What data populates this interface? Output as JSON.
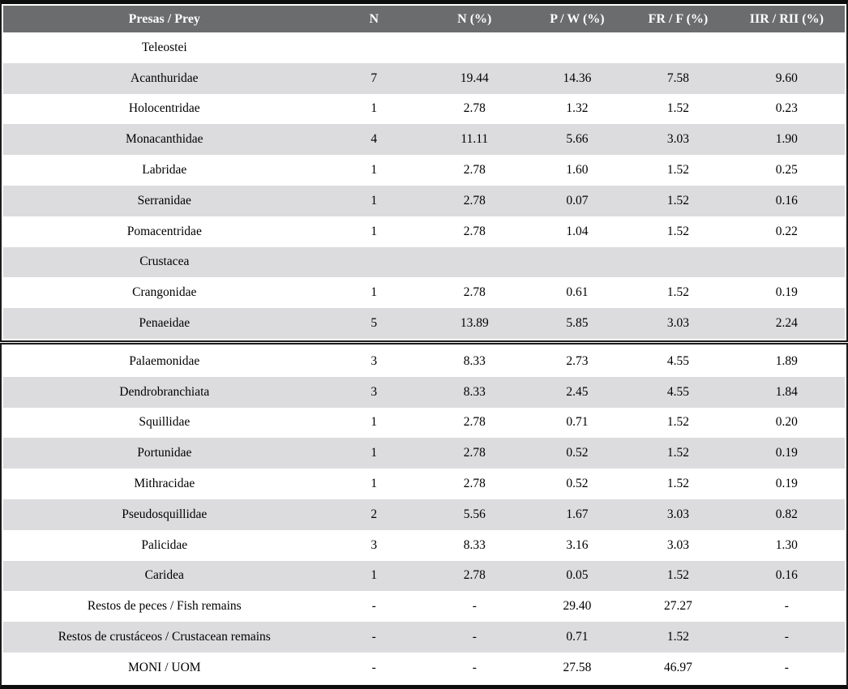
{
  "table": {
    "title": "Diet composition table (Presas / Prey)",
    "columns": [
      "Presas / Prey",
      "N",
      "N (%)",
      "P / W (%)",
      "FR / F (%)",
      "IIR / RII (%)"
    ],
    "rows": [
      {
        "label": "Teleostei",
        "section": true,
        "box": 1,
        "values": [
          "",
          "",
          "",
          "",
          ""
        ]
      },
      {
        "label": "Acanthuridae",
        "section": false,
        "box": 1,
        "values": [
          "7",
          "19.44",
          "14.36",
          "7.58",
          "9.60"
        ]
      },
      {
        "label": "Holocentridae",
        "section": false,
        "box": 1,
        "values": [
          "1",
          "2.78",
          "1.32",
          "1.52",
          "0.23"
        ]
      },
      {
        "label": "Monacanthidae",
        "section": false,
        "box": 1,
        "values": [
          "4",
          "11.11",
          "5.66",
          "3.03",
          "1.90"
        ]
      },
      {
        "label": "Labridae",
        "section": false,
        "box": 1,
        "values": [
          "1",
          "2.78",
          "1.60",
          "1.52",
          "0.25"
        ]
      },
      {
        "label": "Serranidae",
        "section": false,
        "box": 1,
        "values": [
          "1",
          "2.78",
          "0.07",
          "1.52",
          "0.16"
        ]
      },
      {
        "label": "Pomacentridae",
        "section": false,
        "box": 1,
        "values": [
          "1",
          "2.78",
          "1.04",
          "1.52",
          "0.22"
        ]
      },
      {
        "label": "Crustacea",
        "section": true,
        "box": 1,
        "values": [
          "",
          "",
          "",
          "",
          ""
        ]
      },
      {
        "label": "Crangonidae",
        "section": false,
        "box": 1,
        "values": [
          "1",
          "2.78",
          "0.61",
          "1.52",
          "0.19"
        ]
      },
      {
        "label": "Penaeidae",
        "section": false,
        "box": 1,
        "values": [
          "5",
          "13.89",
          "5.85",
          "3.03",
          "2.24"
        ]
      },
      {
        "label": "Palaemonidae",
        "section": false,
        "box": 2,
        "values": [
          "3",
          "8.33",
          "2.73",
          "4.55",
          "1.89"
        ]
      },
      {
        "label": "Dendrobranchiata",
        "section": false,
        "box": 2,
        "values": [
          "3",
          "8.33",
          "2.45",
          "4.55",
          "1.84"
        ]
      },
      {
        "label": "Squillidae",
        "section": false,
        "box": 2,
        "values": [
          "1",
          "2.78",
          "0.71",
          "1.52",
          "0.20"
        ]
      },
      {
        "label": "Portunidae",
        "section": false,
        "box": 2,
        "values": [
          "1",
          "2.78",
          "0.52",
          "1.52",
          "0.19"
        ]
      },
      {
        "label": "Mithracidae",
        "section": false,
        "box": 2,
        "values": [
          "1",
          "2.78",
          "0.52",
          "1.52",
          "0.19"
        ]
      },
      {
        "label": "Pseudosquillidae",
        "section": false,
        "box": 2,
        "values": [
          "2",
          "5.56",
          "1.67",
          "3.03",
          "0.82"
        ]
      },
      {
        "label": "Palicidae",
        "section": false,
        "box": 2,
        "values": [
          "3",
          "8.33",
          "3.16",
          "3.03",
          "1.30"
        ]
      },
      {
        "label": "Caridea",
        "section": false,
        "box": 2,
        "values": [
          "1",
          "2.78",
          "0.05",
          "1.52",
          "0.16"
        ]
      },
      {
        "label": "Restos de peces / Fish remains",
        "section": false,
        "box": 2,
        "values": [
          "-",
          "-",
          "29.40",
          "27.27",
          "-"
        ]
      },
      {
        "label": "Restos de crustáceos / Crustacean remains",
        "section": false,
        "box": 2,
        "values": [
          "-",
          "-",
          "0.71",
          "1.52",
          "-"
        ]
      },
      {
        "label": "MONI / UOM",
        "section": false,
        "box": 2,
        "values": [
          "-",
          "-",
          "27.58",
          "46.97",
          "-"
        ]
      }
    ]
  },
  "colors": {
    "header_bg": "#6b6c6e",
    "header_text": "#ffffff",
    "row_alt_bg": "#dcdcde",
    "border": "#1b1b1b",
    "rule": "#0d0d0d",
    "text": "#000000"
  }
}
